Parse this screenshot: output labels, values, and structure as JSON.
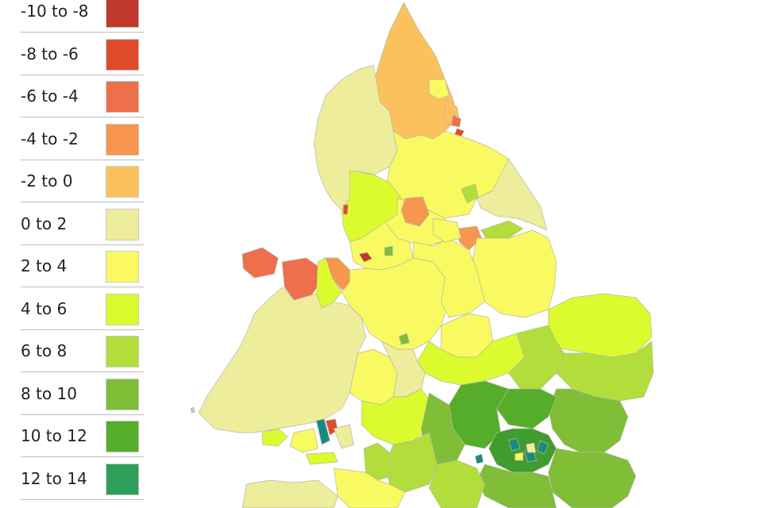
{
  "legend": {
    "items": [
      {
        "label": "-10 to -8",
        "color": "#c0392b"
      },
      {
        "label": "-8 to -6",
        "color": "#dd4b2a"
      },
      {
        "label": "-6 to -4",
        "color": "#ee6f4c"
      },
      {
        "label": "-4 to -2",
        "color": "#f7964f"
      },
      {
        "label": "-2 to 0",
        "color": "#fbc15c"
      },
      {
        "label": "0 to 2",
        "color": "#eded9c"
      },
      {
        "label": "2 to 4",
        "color": "#f9f962"
      },
      {
        "label": "4 to 6",
        "color": "#dbfb2e"
      },
      {
        "label": "6 to 8",
        "color": "#b1de3a"
      },
      {
        "label": "8 to 10",
        "color": "#7fbe36"
      },
      {
        "label": "10 to 12",
        "color": "#55ad2a"
      },
      {
        "label": "12 to 14",
        "color": "#2e9e5b"
      }
    ]
  },
  "map": {
    "description_colors": {
      "teal": "#1b8a80",
      "dark_green": "#3f9d2e",
      "border": "#b7b7a6"
    }
  }
}
